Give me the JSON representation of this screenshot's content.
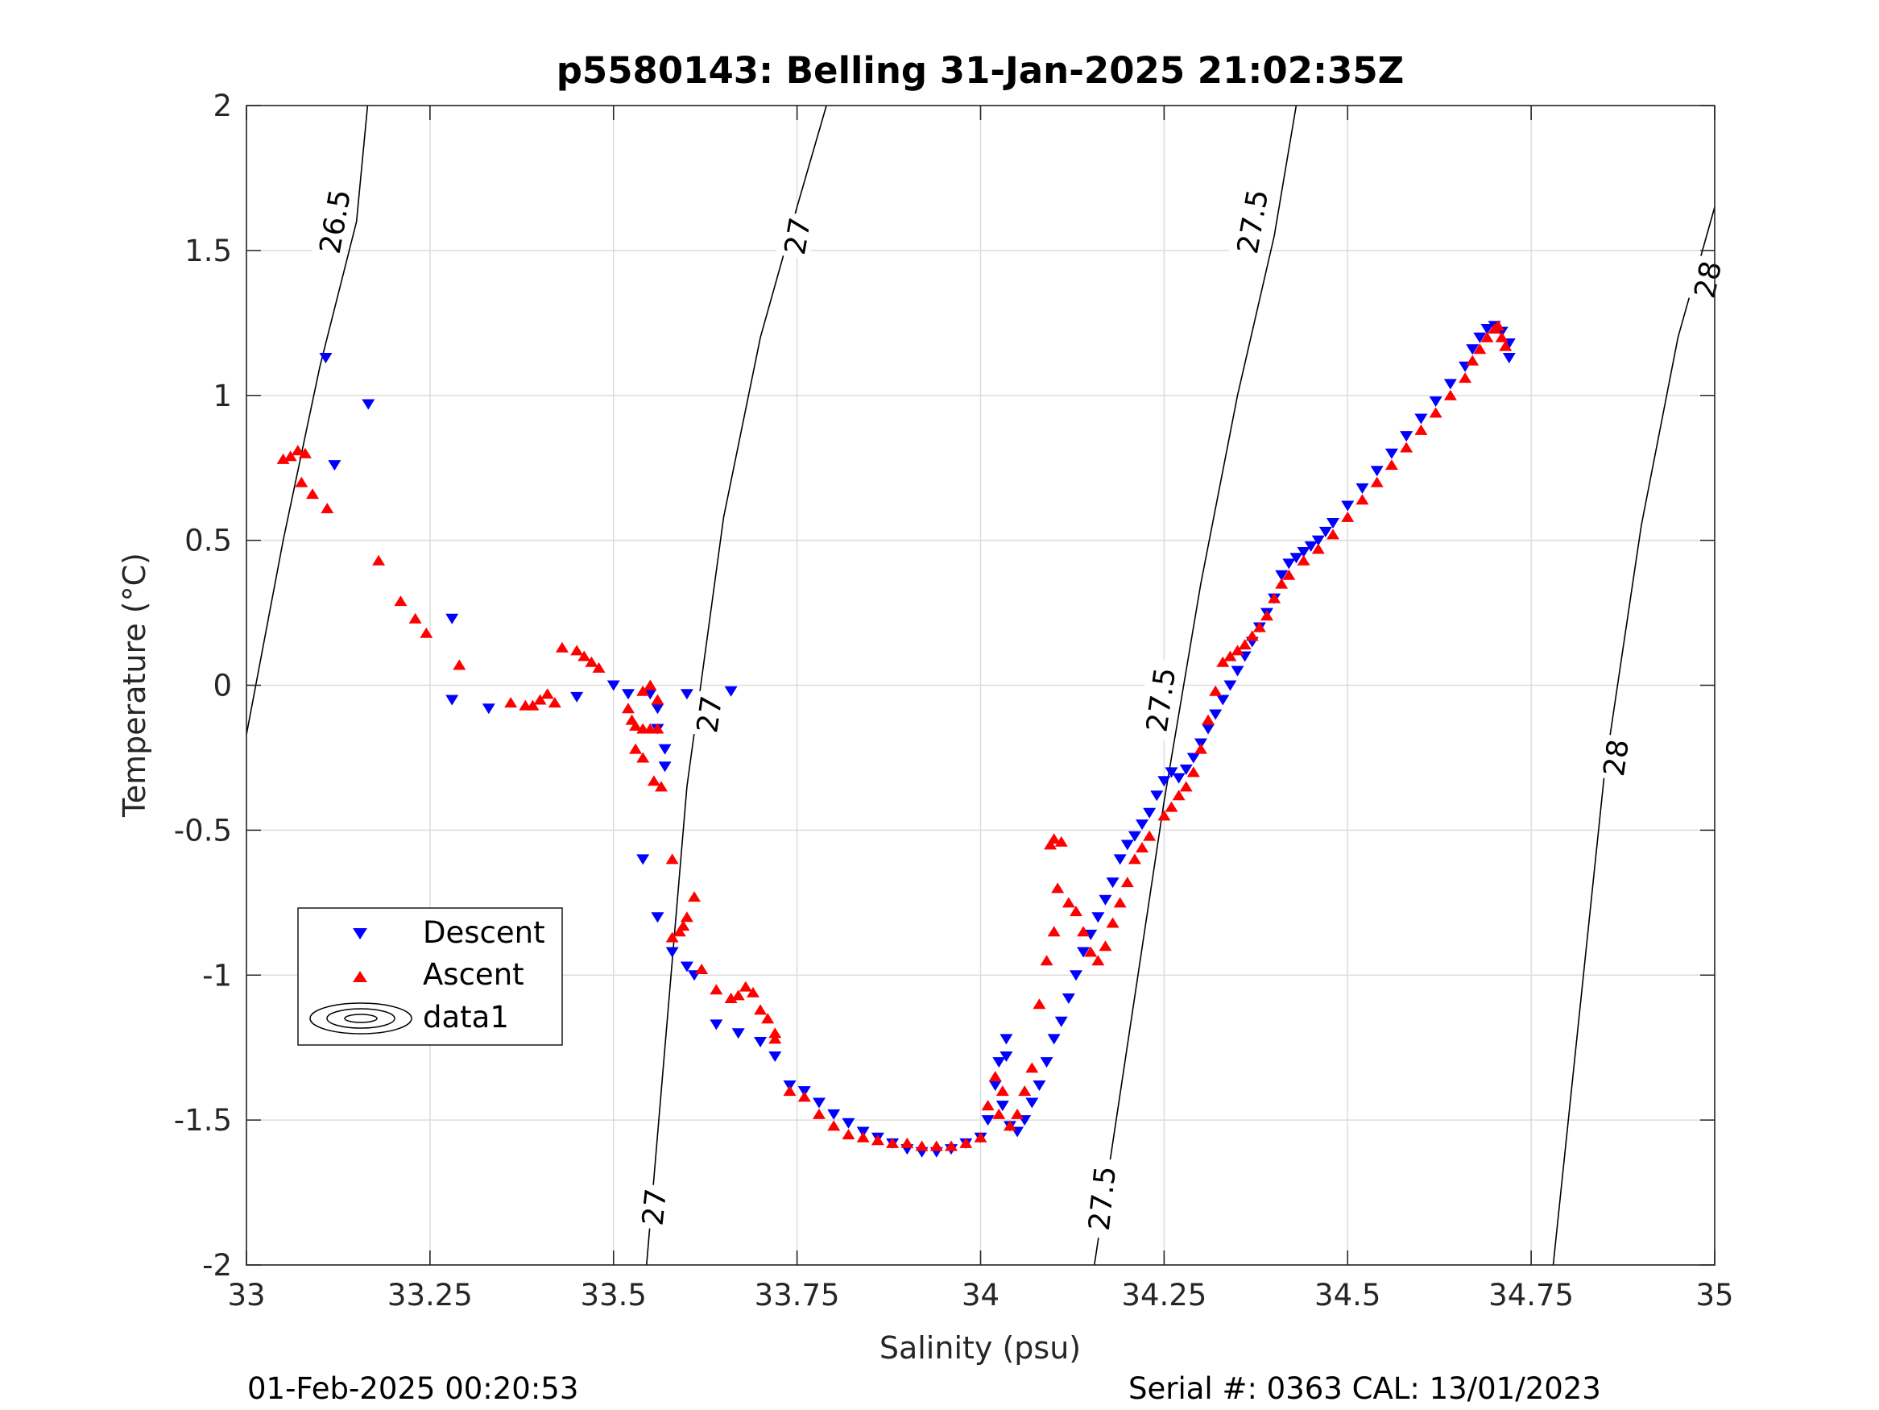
{
  "chart_data": {
    "type": "scatter",
    "title": "p5580143: Belling 31-Jan-2025 21:02:35Z",
    "xlabel": "Salinity (psu)",
    "ylabel": "Temperature (°C)",
    "xlim": [
      33,
      35
    ],
    "ylim": [
      -2,
      2
    ],
    "xticks": [
      33,
      33.25,
      33.5,
      33.75,
      34,
      34.25,
      34.5,
      34.75,
      35
    ],
    "yticks": [
      -2,
      -1.5,
      -1,
      -0.5,
      0,
      0.5,
      1,
      1.5,
      2
    ],
    "grid": true,
    "legend_placement": "lower-left",
    "footer_left": "01-Feb-2025 00:20:53",
    "footer_right": "Serial #: 0363  CAL: 13/01/2023",
    "legend": [
      {
        "label": "Descent",
        "marker": "triangle-down",
        "color": "#0000ff"
      },
      {
        "label": "Ascent",
        "marker": "triangle-up",
        "color": "#ff0000"
      },
      {
        "label": "data1",
        "marker": "contour",
        "color": "#000000"
      }
    ],
    "series": [
      {
        "name": "Descent",
        "color": "#0000ff",
        "marker": "triangle-down",
        "points": [
          [
            33.108,
            1.13
          ],
          [
            33.166,
            0.97
          ],
          [
            33.12,
            0.76
          ],
          [
            33.28,
            0.23
          ],
          [
            33.28,
            -0.05
          ],
          [
            33.33,
            -0.08
          ],
          [
            33.45,
            -0.04
          ],
          [
            33.5,
            0.0
          ],
          [
            33.52,
            -0.03
          ],
          [
            33.55,
            -0.03
          ],
          [
            33.56,
            -0.08
          ],
          [
            33.56,
            -0.15
          ],
          [
            33.57,
            -0.22
          ],
          [
            33.57,
            -0.28
          ],
          [
            33.6,
            -0.03
          ],
          [
            33.66,
            -0.02
          ],
          [
            33.54,
            -0.6
          ],
          [
            33.56,
            -0.8
          ],
          [
            33.58,
            -0.92
          ],
          [
            33.6,
            -0.97
          ],
          [
            33.61,
            -1.0
          ],
          [
            33.64,
            -1.17
          ],
          [
            33.67,
            -1.2
          ],
          [
            33.7,
            -1.23
          ],
          [
            33.72,
            -1.28
          ],
          [
            33.74,
            -1.38
          ],
          [
            33.76,
            -1.4
          ],
          [
            33.78,
            -1.44
          ],
          [
            33.8,
            -1.48
          ],
          [
            33.82,
            -1.51
          ],
          [
            33.84,
            -1.54
          ],
          [
            33.86,
            -1.56
          ],
          [
            33.88,
            -1.58
          ],
          [
            33.9,
            -1.6
          ],
          [
            33.92,
            -1.61
          ],
          [
            33.94,
            -1.61
          ],
          [
            33.96,
            -1.6
          ],
          [
            33.98,
            -1.58
          ],
          [
            34.0,
            -1.56
          ],
          [
            34.01,
            -1.5
          ],
          [
            34.02,
            -1.38
          ],
          [
            34.025,
            -1.3
          ],
          [
            34.03,
            -1.45
          ],
          [
            34.035,
            -1.28
          ],
          [
            34.035,
            -1.22
          ],
          [
            34.04,
            -1.52
          ],
          [
            34.05,
            -1.54
          ],
          [
            34.06,
            -1.5
          ],
          [
            34.07,
            -1.44
          ],
          [
            34.08,
            -1.38
          ],
          [
            34.09,
            -1.3
          ],
          [
            34.1,
            -1.22
          ],
          [
            34.11,
            -1.16
          ],
          [
            34.12,
            -1.08
          ],
          [
            34.13,
            -1.0
          ],
          [
            34.14,
            -0.92
          ],
          [
            34.15,
            -0.86
          ],
          [
            34.16,
            -0.8
          ],
          [
            34.17,
            -0.74
          ],
          [
            34.18,
            -0.68
          ],
          [
            34.19,
            -0.6
          ],
          [
            34.2,
            -0.55
          ],
          [
            34.21,
            -0.52
          ],
          [
            34.22,
            -0.48
          ],
          [
            34.23,
            -0.44
          ],
          [
            34.24,
            -0.38
          ],
          [
            34.25,
            -0.33
          ],
          [
            34.26,
            -0.3
          ],
          [
            34.27,
            -0.32
          ],
          [
            34.28,
            -0.29
          ],
          [
            34.29,
            -0.25
          ],
          [
            34.3,
            -0.2
          ],
          [
            34.31,
            -0.15
          ],
          [
            34.32,
            -0.1
          ],
          [
            34.33,
            -0.05
          ],
          [
            34.34,
            0.0
          ],
          [
            34.35,
            0.05
          ],
          [
            34.36,
            0.1
          ],
          [
            34.37,
            0.15
          ],
          [
            34.38,
            0.2
          ],
          [
            34.39,
            0.25
          ],
          [
            34.4,
            0.3
          ],
          [
            34.41,
            0.38
          ],
          [
            34.42,
            0.42
          ],
          [
            34.43,
            0.44
          ],
          [
            34.44,
            0.46
          ],
          [
            34.45,
            0.48
          ],
          [
            34.46,
            0.5
          ],
          [
            34.47,
            0.53
          ],
          [
            34.48,
            0.56
          ],
          [
            34.5,
            0.62
          ],
          [
            34.52,
            0.68
          ],
          [
            34.54,
            0.74
          ],
          [
            34.56,
            0.8
          ],
          [
            34.58,
            0.86
          ],
          [
            34.6,
            0.92
          ],
          [
            34.62,
            0.98
          ],
          [
            34.64,
            1.04
          ],
          [
            34.66,
            1.1
          ],
          [
            34.67,
            1.16
          ],
          [
            34.68,
            1.2
          ],
          [
            34.69,
            1.23
          ],
          [
            34.7,
            1.24
          ],
          [
            34.71,
            1.22
          ],
          [
            34.72,
            1.18
          ],
          [
            34.72,
            1.13
          ]
        ]
      },
      {
        "name": "Ascent",
        "color": "#ff0000",
        "marker": "triangle-up",
        "points": [
          [
            33.05,
            0.78
          ],
          [
            33.06,
            0.79
          ],
          [
            33.07,
            0.81
          ],
          [
            33.08,
            0.8
          ],
          [
            33.075,
            0.7
          ],
          [
            33.09,
            0.66
          ],
          [
            33.11,
            0.61
          ],
          [
            33.18,
            0.43
          ],
          [
            33.21,
            0.29
          ],
          [
            33.23,
            0.23
          ],
          [
            33.245,
            0.18
          ],
          [
            33.29,
            0.07
          ],
          [
            33.36,
            -0.06
          ],
          [
            33.38,
            -0.07
          ],
          [
            33.39,
            -0.07
          ],
          [
            33.4,
            -0.05
          ],
          [
            33.41,
            -0.03
          ],
          [
            33.42,
            -0.06
          ],
          [
            33.43,
            0.13
          ],
          [
            33.45,
            0.12
          ],
          [
            33.46,
            0.1
          ],
          [
            33.47,
            0.08
          ],
          [
            33.48,
            0.06
          ],
          [
            33.52,
            -0.08
          ],
          [
            33.525,
            -0.12
          ],
          [
            33.53,
            -0.14
          ],
          [
            33.54,
            -0.15
          ],
          [
            33.55,
            -0.15
          ],
          [
            33.56,
            -0.15
          ],
          [
            33.54,
            -0.02
          ],
          [
            33.55,
            0.0
          ],
          [
            33.56,
            -0.05
          ],
          [
            33.53,
            -0.22
          ],
          [
            33.54,
            -0.25
          ],
          [
            33.555,
            -0.33
          ],
          [
            33.565,
            -0.35
          ],
          [
            33.58,
            -0.6
          ],
          [
            33.61,
            -0.73
          ],
          [
            33.6,
            -0.8
          ],
          [
            33.595,
            -0.83
          ],
          [
            33.58,
            -0.87
          ],
          [
            33.59,
            -0.85
          ],
          [
            33.62,
            -0.98
          ],
          [
            33.64,
            -1.05
          ],
          [
            33.66,
            -1.08
          ],
          [
            33.67,
            -1.07
          ],
          [
            33.68,
            -1.04
          ],
          [
            33.69,
            -1.06
          ],
          [
            33.7,
            -1.12
          ],
          [
            33.71,
            -1.15
          ],
          [
            33.72,
            -1.2
          ],
          [
            33.72,
            -1.22
          ],
          [
            33.74,
            -1.4
          ],
          [
            33.76,
            -1.42
          ],
          [
            33.78,
            -1.48
          ],
          [
            33.8,
            -1.52
          ],
          [
            33.82,
            -1.55
          ],
          [
            33.84,
            -1.56
          ],
          [
            33.86,
            -1.57
          ],
          [
            33.88,
            -1.58
          ],
          [
            33.9,
            -1.58
          ],
          [
            33.92,
            -1.59
          ],
          [
            33.94,
            -1.59
          ],
          [
            33.96,
            -1.59
          ],
          [
            33.98,
            -1.58
          ],
          [
            34.0,
            -1.56
          ],
          [
            34.01,
            -1.45
          ],
          [
            34.02,
            -1.35
          ],
          [
            34.025,
            -1.48
          ],
          [
            34.03,
            -1.4
          ],
          [
            34.04,
            -1.52
          ],
          [
            34.05,
            -1.48
          ],
          [
            34.06,
            -1.4
          ],
          [
            34.07,
            -1.32
          ],
          [
            34.08,
            -1.1
          ],
          [
            34.09,
            -0.95
          ],
          [
            34.1,
            -0.85
          ],
          [
            34.095,
            -0.55
          ],
          [
            34.1,
            -0.53
          ],
          [
            34.11,
            -0.54
          ],
          [
            34.105,
            -0.7
          ],
          [
            34.12,
            -0.75
          ],
          [
            34.13,
            -0.78
          ],
          [
            34.14,
            -0.85
          ],
          [
            34.15,
            -0.92
          ],
          [
            34.16,
            -0.95
          ],
          [
            34.17,
            -0.9
          ],
          [
            34.18,
            -0.82
          ],
          [
            34.19,
            -0.75
          ],
          [
            34.2,
            -0.68
          ],
          [
            34.21,
            -0.6
          ],
          [
            34.22,
            -0.56
          ],
          [
            34.23,
            -0.52
          ],
          [
            34.25,
            -0.45
          ],
          [
            34.26,
            -0.42
          ],
          [
            34.27,
            -0.38
          ],
          [
            34.28,
            -0.35
          ],
          [
            34.29,
            -0.3
          ],
          [
            34.3,
            -0.22
          ],
          [
            34.31,
            -0.12
          ],
          [
            34.32,
            -0.02
          ],
          [
            34.33,
            0.08
          ],
          [
            34.34,
            0.1
          ],
          [
            34.35,
            0.12
          ],
          [
            34.36,
            0.14
          ],
          [
            34.37,
            0.17
          ],
          [
            34.38,
            0.2
          ],
          [
            34.39,
            0.24
          ],
          [
            34.4,
            0.3
          ],
          [
            34.41,
            0.35
          ],
          [
            34.42,
            0.38
          ],
          [
            34.44,
            0.43
          ],
          [
            34.46,
            0.47
          ],
          [
            34.48,
            0.52
          ],
          [
            34.5,
            0.58
          ],
          [
            34.52,
            0.64
          ],
          [
            34.54,
            0.7
          ],
          [
            34.56,
            0.76
          ],
          [
            34.58,
            0.82
          ],
          [
            34.6,
            0.88
          ],
          [
            34.62,
            0.94
          ],
          [
            34.64,
            1.0
          ],
          [
            34.66,
            1.06
          ],
          [
            34.67,
            1.12
          ],
          [
            34.68,
            1.16
          ],
          [
            34.69,
            1.2
          ],
          [
            34.7,
            1.23
          ],
          [
            34.705,
            1.24
          ],
          [
            34.71,
            1.2
          ],
          [
            34.715,
            1.17
          ]
        ]
      }
    ],
    "contours": [
      {
        "label": "26.5",
        "points": [
          [
            33.0,
            -0.17
          ],
          [
            33.05,
            0.5
          ],
          [
            33.1,
            1.1
          ],
          [
            33.15,
            1.6
          ],
          [
            33.165,
            2.0
          ]
        ]
      },
      {
        "label": "27",
        "points": [
          [
            33.545,
            -2.0
          ],
          [
            33.6,
            -0.35
          ],
          [
            33.65,
            0.58
          ],
          [
            33.7,
            1.2
          ],
          [
            33.75,
            1.65
          ],
          [
            33.79,
            2.0
          ]
        ]
      },
      {
        "label": "27.5",
        "points": [
          [
            34.155,
            -2.0
          ],
          [
            34.25,
            -0.4
          ],
          [
            34.3,
            0.35
          ],
          [
            34.35,
            1.0
          ],
          [
            34.4,
            1.55
          ],
          [
            34.43,
            2.0
          ]
        ]
      },
      {
        "label": "28",
        "points": [
          [
            34.78,
            -2.0
          ],
          [
            34.85,
            -0.3
          ],
          [
            34.9,
            0.55
          ],
          [
            34.95,
            1.2
          ],
          [
            35.0,
            1.65
          ]
        ]
      }
    ],
    "contour_labels": [
      {
        "text": "26.5",
        "x": 33.12,
        "y": 1.6,
        "angle": -80
      },
      {
        "text": "27",
        "x": 33.75,
        "y": 1.55,
        "angle": -80
      },
      {
        "text": "27",
        "x": 33.63,
        "y": -0.1,
        "angle": -82
      },
      {
        "text": "27",
        "x": 33.555,
        "y": -1.8,
        "angle": -84
      },
      {
        "text": "27.5",
        "x": 34.37,
        "y": 1.6,
        "angle": -80
      },
      {
        "text": "27.5",
        "x": 34.245,
        "y": -0.05,
        "angle": -82
      },
      {
        "text": "27.5",
        "x": 34.165,
        "y": -1.77,
        "angle": -84
      },
      {
        "text": "28",
        "x": 34.99,
        "y": 1.4,
        "angle": -78
      },
      {
        "text": "28",
        "x": 34.865,
        "y": -0.25,
        "angle": -82
      }
    ]
  }
}
